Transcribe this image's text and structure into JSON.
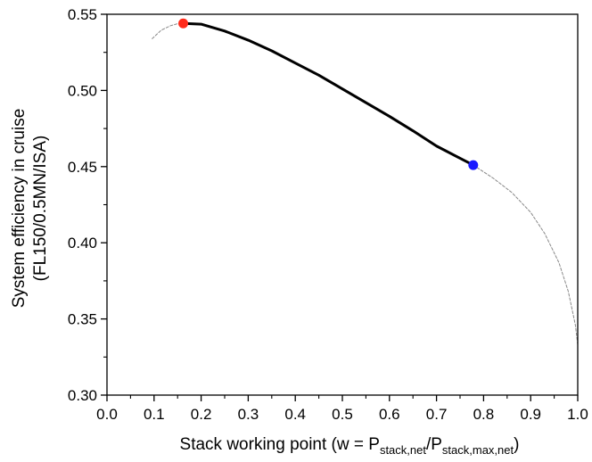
{
  "chart_data": {
    "type": "line",
    "xlabel": {
      "parts": [
        {
          "text": "Stack working point (w = P",
          "sub": false
        },
        {
          "text": "stack,net",
          "sub": true
        },
        {
          "text": "/P",
          "sub": false
        },
        {
          "text": "stack,max,net",
          "sub": true
        },
        {
          "text": ")",
          "sub": false
        }
      ]
    },
    "ylabel_lines": [
      "System efficiency in cruise",
      "(FL150/0.5MN/ISA)"
    ],
    "xlim": [
      0.0,
      1.0
    ],
    "ylim": [
      0.3,
      0.55
    ],
    "x_ticks": [
      0.0,
      0.1,
      0.2,
      0.3,
      0.4,
      0.5,
      0.6,
      0.7,
      0.8,
      0.9,
      1.0
    ],
    "x_tick_labels": [
      "0.0",
      "0.1",
      "0.2",
      "0.3",
      "0.4",
      "0.5",
      "0.6",
      "0.7",
      "0.8",
      "0.9",
      "1.0"
    ],
    "y_ticks": [
      0.3,
      0.35,
      0.4,
      0.45,
      0.5,
      0.55
    ],
    "y_tick_labels": [
      "0.30",
      "0.35",
      "0.40",
      "0.45",
      "0.50",
      "0.55"
    ],
    "x_minor_step": 0.05,
    "y_minor_step": 0.025,
    "grid": false,
    "series": [
      {
        "style": "dashed",
        "color": "#888888",
        "points": [
          [
            0.096,
            0.534
          ],
          [
            0.115,
            0.5395
          ],
          [
            0.135,
            0.5425
          ],
          [
            0.15,
            0.5438
          ],
          [
            0.162,
            0.544
          ]
        ]
      },
      {
        "style": "solid",
        "color": "#000000",
        "points": [
          [
            0.162,
            0.544
          ],
          [
            0.2,
            0.5435
          ],
          [
            0.25,
            0.539
          ],
          [
            0.3,
            0.533
          ],
          [
            0.35,
            0.526
          ],
          [
            0.4,
            0.518
          ],
          [
            0.45,
            0.51
          ],
          [
            0.5,
            0.501
          ],
          [
            0.55,
            0.492
          ],
          [
            0.6,
            0.483
          ],
          [
            0.65,
            0.4735
          ],
          [
            0.7,
            0.4635
          ],
          [
            0.75,
            0.4555
          ],
          [
            0.778,
            0.451
          ]
        ]
      },
      {
        "style": "dashed",
        "color": "#888888",
        "points": [
          [
            0.778,
            0.451
          ],
          [
            0.82,
            0.4425
          ],
          [
            0.86,
            0.433
          ],
          [
            0.9,
            0.42
          ],
          [
            0.93,
            0.406
          ],
          [
            0.96,
            0.387
          ],
          [
            0.98,
            0.368
          ],
          [
            0.995,
            0.346
          ],
          [
            1.0,
            0.333
          ]
        ]
      }
    ],
    "markers": [
      {
        "x": 0.162,
        "y": 0.544,
        "color": "#ff2a1a"
      },
      {
        "x": 0.778,
        "y": 0.451,
        "color": "#1a1aff"
      }
    ]
  }
}
